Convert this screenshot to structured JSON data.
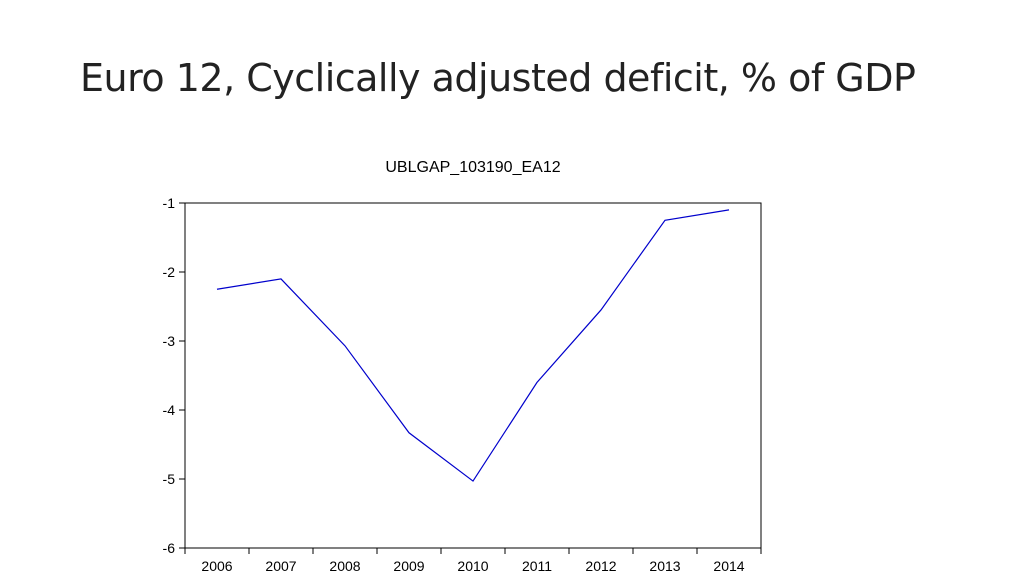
{
  "slide": {
    "title": "Euro 12, Cyclically adjusted deficit, % of GDP"
  },
  "chart_data": {
    "type": "line",
    "title": "UBLGAP_103190_EA12",
    "xlabel": "",
    "ylabel": "",
    "categories": [
      "2006",
      "2007",
      "2008",
      "2009",
      "2010",
      "2011",
      "2012",
      "2013",
      "2014"
    ],
    "series": [
      {
        "values": [
          -2.25,
          -2.1,
          -3.07,
          -4.33,
          -5.03,
          -3.6,
          -2.55,
          -1.25,
          -1.1
        ],
        "color": "#0000cc"
      }
    ],
    "ylim": [
      -6,
      -1
    ],
    "yticks": [
      "-1",
      "-2",
      "-3",
      "-4",
      "-5",
      "-6"
    ],
    "grid": false,
    "legend": "none"
  }
}
